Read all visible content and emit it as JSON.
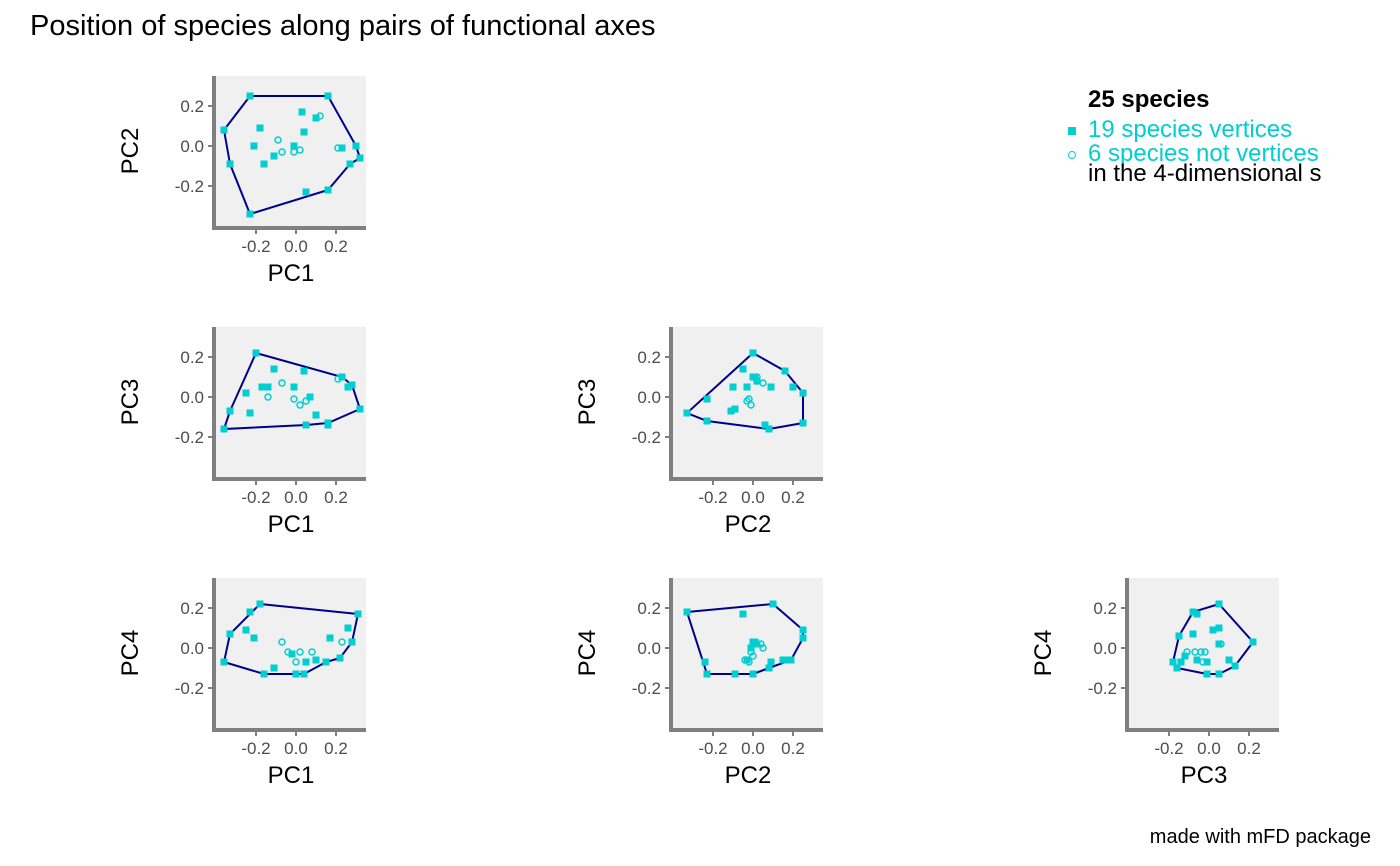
{
  "title": "Position of species along pairs of functional axes",
  "caption": "made with mFD package",
  "legend": {
    "title": "25 species",
    "vertices_label": "19 species vertices",
    "nonvertices_label": "6 species not vertices",
    "note": "in the 4-dimensional s"
  },
  "colors": {
    "vertices": "#00CED1",
    "hull": "#00008B",
    "panel_bg": "#F0F0F0",
    "axis_line": "#7F7F7F",
    "tick_label": "#4D4D4D"
  },
  "chart_data": {
    "type": "scatter",
    "axis_range": [
      -0.4,
      0.35
    ],
    "tick_labels_y": [
      "0.2",
      "0.0",
      "-0.2"
    ],
    "tick_labels_x": [
      "-0.2",
      "0.0",
      "0.2"
    ],
    "ticks": [
      -0.2,
      0.0,
      0.2
    ],
    "panels": [
      {
        "xlabel": "PC1",
        "ylabel": "PC2",
        "vertices": [
          [
            -0.23,
            0.25
          ],
          [
            0.16,
            0.25
          ],
          [
            0.3,
            0.0
          ],
          [
            0.32,
            -0.06
          ],
          [
            0.27,
            -0.09
          ],
          [
            0.16,
            -0.22
          ],
          [
            -0.23,
            -0.34
          ],
          [
            -0.33,
            -0.09
          ],
          [
            -0.36,
            0.08
          ],
          [
            0.03,
            0.17
          ],
          [
            0.1,
            0.14
          ],
          [
            -0.18,
            0.09
          ],
          [
            -0.21,
            0.0
          ],
          [
            -0.11,
            -0.05
          ],
          [
            -0.16,
            -0.09
          ],
          [
            0.04,
            0.07
          ],
          [
            -0.01,
            0.0
          ],
          [
            0.23,
            -0.01
          ],
          [
            0.05,
            -0.23
          ]
        ],
        "non_vertices": [
          [
            -0.09,
            0.03
          ],
          [
            -0.07,
            -0.03
          ],
          [
            0.02,
            -0.02
          ],
          [
            0.12,
            0.15
          ],
          [
            0.21,
            -0.01
          ],
          [
            -0.01,
            -0.03
          ]
        ],
        "hull": [
          [
            -0.23,
            0.25
          ],
          [
            0.16,
            0.25
          ],
          [
            0.3,
            0.0
          ],
          [
            0.32,
            -0.06
          ],
          [
            0.27,
            -0.09
          ],
          [
            0.16,
            -0.22
          ],
          [
            -0.23,
            -0.34
          ],
          [
            -0.33,
            -0.09
          ],
          [
            -0.36,
            0.08
          ]
        ]
      },
      {
        "xlabel": "PC1",
        "ylabel": "PC3",
        "vertices": [
          [
            -0.2,
            0.22
          ],
          [
            0.23,
            0.1
          ],
          [
            0.28,
            0.06
          ],
          [
            0.32,
            -0.06
          ],
          [
            0.16,
            -0.13
          ],
          [
            0.05,
            -0.14
          ],
          [
            -0.36,
            -0.16
          ],
          [
            -0.33,
            -0.07
          ],
          [
            -0.11,
            0.14
          ],
          [
            -0.17,
            0.05
          ],
          [
            -0.25,
            0.02
          ],
          [
            -0.23,
            -0.08
          ],
          [
            -0.01,
            0.05
          ],
          [
            0.04,
            0.13
          ],
          [
            0.1,
            -0.09
          ],
          [
            0.16,
            -0.14
          ],
          [
            -0.14,
            0.05
          ],
          [
            0.26,
            0.05
          ],
          [
            0.07,
            0.0
          ]
        ],
        "non_vertices": [
          [
            -0.07,
            0.07
          ],
          [
            -0.14,
            0.0
          ],
          [
            -0.01,
            -0.01
          ],
          [
            0.02,
            -0.04
          ],
          [
            0.05,
            -0.02
          ],
          [
            0.21,
            0.09
          ]
        ],
        "hull": [
          [
            -0.2,
            0.22
          ],
          [
            0.23,
            0.1
          ],
          [
            0.28,
            0.06
          ],
          [
            0.32,
            -0.06
          ],
          [
            0.16,
            -0.13
          ],
          [
            0.05,
            -0.14
          ],
          [
            -0.36,
            -0.16
          ],
          [
            -0.33,
            -0.07
          ]
        ]
      },
      {
        "xlabel": "PC2",
        "ylabel": "PC3",
        "vertices": [
          [
            0.0,
            0.22
          ],
          [
            0.16,
            0.13
          ],
          [
            0.25,
            0.02
          ],
          [
            0.25,
            -0.13
          ],
          [
            0.08,
            -0.16
          ],
          [
            -0.23,
            -0.12
          ],
          [
            -0.33,
            -0.08
          ],
          [
            -0.1,
            0.05
          ],
          [
            -0.05,
            0.14
          ],
          [
            0.0,
            0.1
          ],
          [
            0.02,
            0.08
          ],
          [
            -0.03,
            0.05
          ],
          [
            0.09,
            0.05
          ],
          [
            -0.23,
            -0.01
          ],
          [
            -0.09,
            -0.06
          ],
          [
            -0.11,
            -0.07
          ],
          [
            0.06,
            -0.14
          ],
          [
            0.2,
            0.05
          ],
          [
            0.01,
            0.1
          ]
        ],
        "non_vertices": [
          [
            0.05,
            0.07
          ],
          [
            -0.02,
            -0.01
          ],
          [
            -0.01,
            -0.04
          ],
          [
            0.02,
            0.08
          ],
          [
            -0.03,
            -0.02
          ],
          [
            0.02,
            0.1
          ]
        ],
        "hull": [
          [
            0.0,
            0.22
          ],
          [
            0.16,
            0.13
          ],
          [
            0.25,
            0.02
          ],
          [
            0.25,
            -0.13
          ],
          [
            0.08,
            -0.16
          ],
          [
            -0.23,
            -0.12
          ],
          [
            -0.33,
            -0.08
          ]
        ]
      },
      {
        "xlabel": "PC1",
        "ylabel": "PC4",
        "vertices": [
          [
            -0.18,
            0.22
          ],
          [
            0.31,
            0.17
          ],
          [
            0.28,
            0.03
          ],
          [
            0.22,
            -0.05
          ],
          [
            0.15,
            -0.07
          ],
          [
            0.04,
            -0.13
          ],
          [
            -0.16,
            -0.13
          ],
          [
            -0.36,
            -0.07
          ],
          [
            -0.33,
            0.07
          ],
          [
            -0.23,
            0.18
          ],
          [
            -0.25,
            0.09
          ],
          [
            -0.21,
            0.05
          ],
          [
            -0.11,
            -0.1
          ],
          [
            0.17,
            0.05
          ],
          [
            0.26,
            0.1
          ],
          [
            0.0,
            -0.13
          ],
          [
            0.05,
            -0.07
          ],
          [
            0.1,
            -0.06
          ],
          [
            -0.02,
            -0.03
          ]
        ],
        "non_vertices": [
          [
            -0.07,
            0.03
          ],
          [
            -0.04,
            -0.02
          ],
          [
            0.02,
            -0.02
          ],
          [
            0.08,
            -0.02
          ],
          [
            0.23,
            0.03
          ],
          [
            0.0,
            -0.07
          ]
        ],
        "hull": [
          [
            -0.18,
            0.22
          ],
          [
            0.31,
            0.17
          ],
          [
            0.28,
            0.03
          ],
          [
            0.22,
            -0.05
          ],
          [
            0.15,
            -0.07
          ],
          [
            0.04,
            -0.13
          ],
          [
            -0.16,
            -0.13
          ],
          [
            -0.36,
            -0.07
          ],
          [
            -0.33,
            0.07
          ]
        ]
      },
      {
        "xlabel": "PC2",
        "ylabel": "PC4",
        "vertices": [
          [
            0.1,
            0.22
          ],
          [
            0.25,
            0.09
          ],
          [
            0.25,
            0.05
          ],
          [
            0.19,
            -0.06
          ],
          [
            0.08,
            -0.1
          ],
          [
            0.0,
            -0.13
          ],
          [
            -0.23,
            -0.13
          ],
          [
            -0.33,
            0.18
          ],
          [
            -0.05,
            0.17
          ],
          [
            0.0,
            0.03
          ],
          [
            0.02,
            0.02
          ],
          [
            -0.24,
            -0.07
          ],
          [
            -0.09,
            -0.13
          ],
          [
            0.15,
            -0.06
          ],
          [
            -0.03,
            -0.06
          ],
          [
            0.09,
            -0.07
          ],
          [
            -0.01,
            0.0
          ],
          [
            0.01,
            0.03
          ],
          [
            0.17,
            -0.06
          ]
        ],
        "non_vertices": [
          [
            0.04,
            0.02
          ],
          [
            -0.01,
            -0.02
          ],
          [
            0.0,
            -0.04
          ],
          [
            -0.02,
            -0.07
          ],
          [
            0.05,
            0.0
          ],
          [
            -0.04,
            -0.06
          ]
        ],
        "hull": [
          [
            0.1,
            0.22
          ],
          [
            0.25,
            0.09
          ],
          [
            0.25,
            0.05
          ],
          [
            0.19,
            -0.06
          ],
          [
            0.08,
            -0.1
          ],
          [
            0.0,
            -0.13
          ],
          [
            -0.23,
            -0.13
          ],
          [
            -0.33,
            0.18
          ]
        ]
      },
      {
        "xlabel": "PC3",
        "ylabel": "PC4",
        "vertices": [
          [
            0.05,
            0.22
          ],
          [
            0.22,
            0.03
          ],
          [
            0.13,
            -0.09
          ],
          [
            0.05,
            -0.13
          ],
          [
            -0.01,
            -0.13
          ],
          [
            -0.16,
            -0.1
          ],
          [
            -0.18,
            -0.07
          ],
          [
            -0.15,
            0.06
          ],
          [
            -0.08,
            0.18
          ],
          [
            -0.06,
            0.17
          ],
          [
            -0.08,
            0.07
          ],
          [
            0.02,
            0.09
          ],
          [
            0.05,
            0.1
          ],
          [
            0.1,
            -0.06
          ],
          [
            -0.14,
            -0.07
          ],
          [
            -0.12,
            -0.04
          ],
          [
            -0.06,
            -0.06
          ],
          [
            0.05,
            0.02
          ],
          [
            -0.01,
            -0.07
          ]
        ],
        "non_vertices": [
          [
            -0.11,
            -0.02
          ],
          [
            -0.07,
            -0.02
          ],
          [
            -0.04,
            -0.02
          ],
          [
            -0.02,
            -0.02
          ],
          [
            -0.03,
            -0.07
          ],
          [
            0.06,
            0.02
          ]
        ],
        "hull": [
          [
            0.05,
            0.22
          ],
          [
            0.22,
            0.03
          ],
          [
            0.13,
            -0.09
          ],
          [
            0.05,
            -0.13
          ],
          [
            -0.01,
            -0.13
          ],
          [
            -0.16,
            -0.1
          ],
          [
            -0.18,
            -0.07
          ],
          [
            -0.15,
            0.06
          ],
          [
            -0.08,
            0.18
          ]
        ]
      }
    ]
  }
}
